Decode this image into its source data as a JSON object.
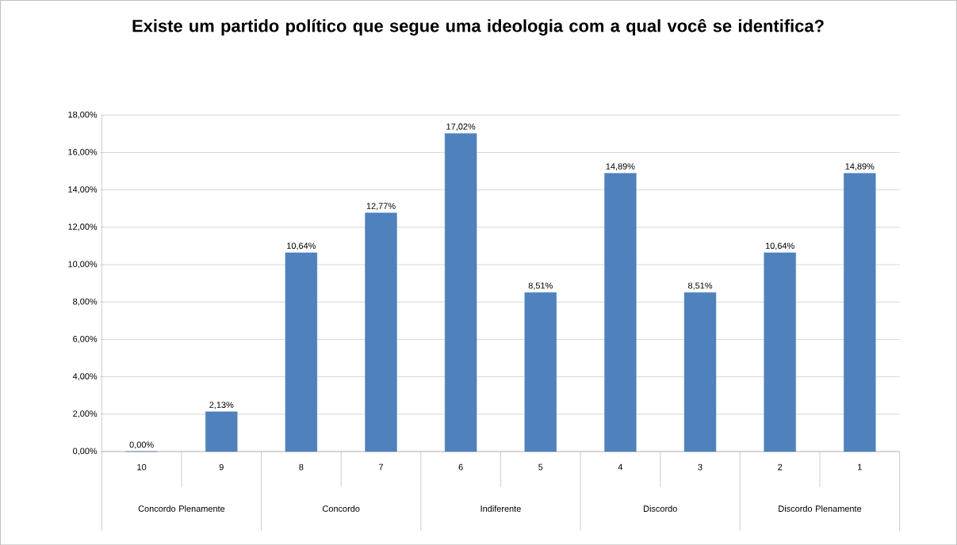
{
  "chart_data": {
    "type": "bar",
    "title": "Existe um partido político que segue uma ideologia com a qual você se identifica?",
    "categories": [
      "10",
      "9",
      "8",
      "7",
      "6",
      "5",
      "4",
      "3",
      "2",
      "1"
    ],
    "values": [
      0,
      2.13,
      10.64,
      12.77,
      17.02,
      8.51,
      14.89,
      8.51,
      10.64,
      14.89
    ],
    "value_labels": [
      "0,00%",
      "2,13%",
      "10,64%",
      "12,77%",
      "17,02%",
      "8,51%",
      "14,89%",
      "8,51%",
      "10,64%",
      "14,89%"
    ],
    "color": "#4f81bd",
    "annotations": [
      "Concordo Plenamente",
      "Concordo",
      "Indiferente",
      "Discordo",
      "Discordo Plenamente"
    ],
    "ylim": [
      0,
      18
    ],
    "yticks": [
      {
        "value": 0,
        "label": "0,00%"
      },
      {
        "value": 2,
        "label": "2,00%"
      },
      {
        "value": 4,
        "label": "4,00%"
      },
      {
        "value": 6,
        "label": "6,00%"
      },
      {
        "value": 8,
        "label": "8,00%"
      },
      {
        "value": 10,
        "label": "10,00%"
      },
      {
        "value": 12,
        "label": "12,00%"
      },
      {
        "value": 14,
        "label": "14,00%"
      },
      {
        "value": 16,
        "label": "16,00%"
      },
      {
        "value": 18,
        "label": "18,00%"
      }
    ],
    "grid": "y"
  }
}
